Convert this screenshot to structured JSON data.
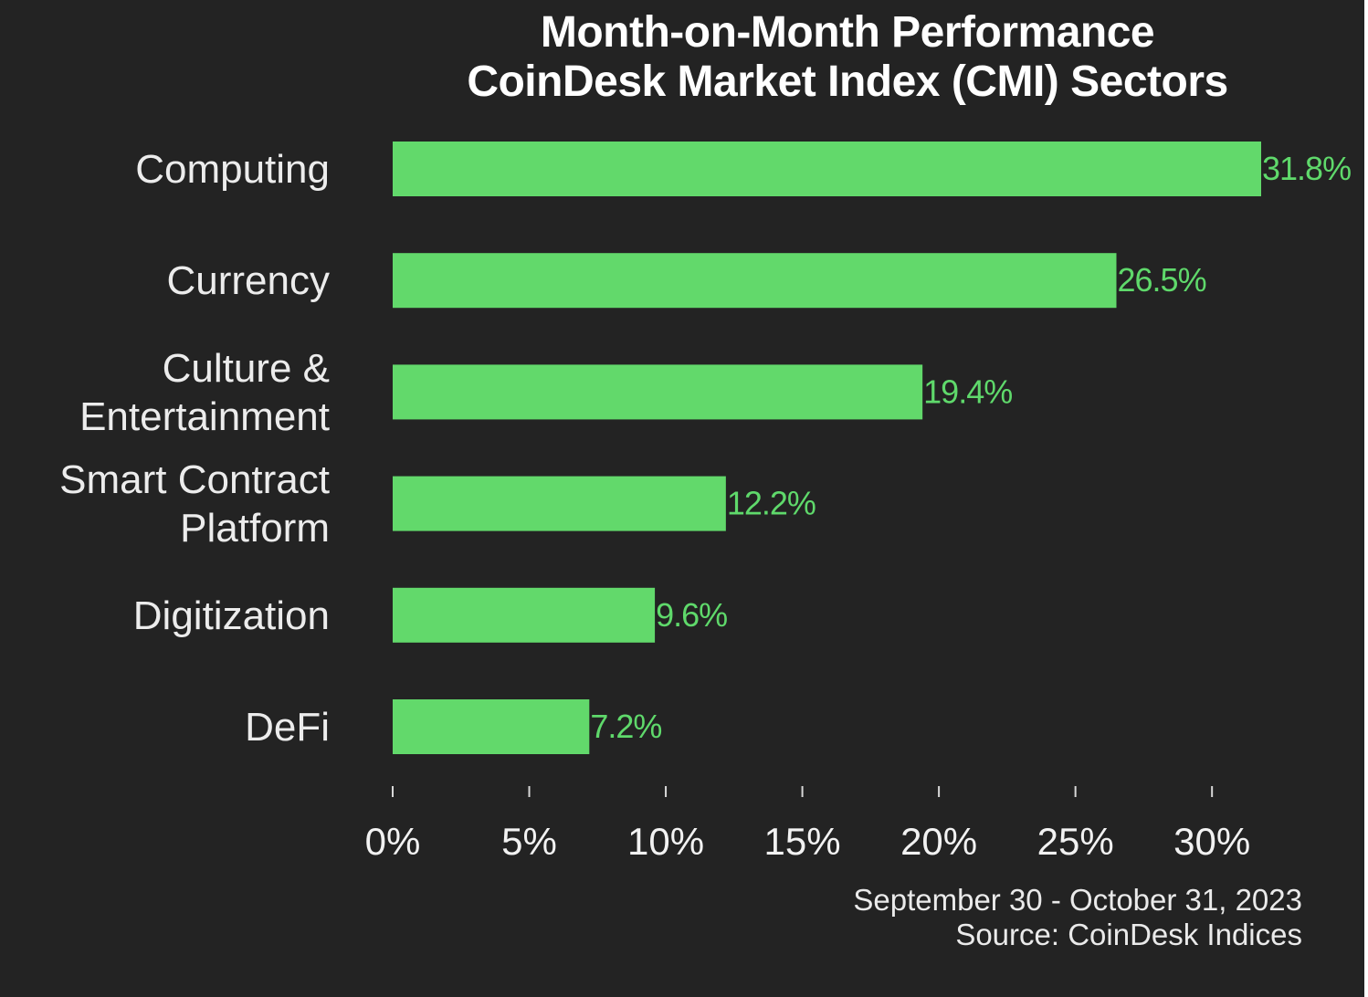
{
  "chart_data": {
    "type": "bar",
    "orientation": "horizontal",
    "title": "Month-on-Month Performance",
    "subtitle": "CoinDesk Market Index (CMI) Sectors",
    "categories": [
      [
        "Computing"
      ],
      [
        "Currency"
      ],
      [
        "Culture &",
        "Entertainment"
      ],
      [
        "Smart Contract",
        "Platform"
      ],
      [
        "Digitization"
      ],
      [
        "DeFi"
      ]
    ],
    "values": [
      31.8,
      26.5,
      19.4,
      12.2,
      9.6,
      7.2
    ],
    "value_labels": [
      "31.8%",
      "26.5%",
      "19.4%",
      "12.2%",
      "9.6%",
      "7.2%"
    ],
    "x_ticks": [
      0,
      5,
      10,
      15,
      20,
      25,
      30
    ],
    "x_tick_labels": [
      "0%",
      "5%",
      "10%",
      "15%",
      "20%",
      "25%",
      "30%"
    ],
    "xlim": [
      0,
      31.8
    ],
    "grid": false,
    "colors": {
      "background": "#232323",
      "bar": "#62d96b",
      "value_label": "#5fd96b"
    }
  },
  "footer": {
    "date_range": "September 30 - October 31, 2023",
    "source": "Source: CoinDesk Indices"
  }
}
